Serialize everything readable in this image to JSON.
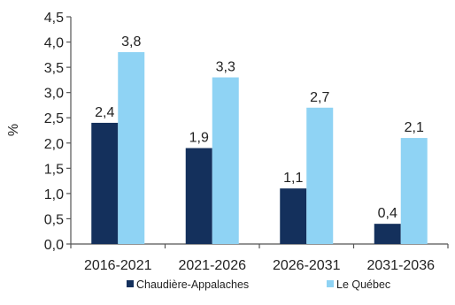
{
  "chart_data": {
    "type": "bar",
    "categories": [
      "2016-2021",
      "2021-2026",
      "2026-2031",
      "2031-2036"
    ],
    "series": [
      {
        "name": "Chaudière-Appalaches",
        "values": [
          2.4,
          1.9,
          1.1,
          0.4
        ],
        "labels": [
          "2,4",
          "1,9",
          "1,1",
          "0,4"
        ],
        "color": "#14305c"
      },
      {
        "name": "Le Québec",
        "values": [
          3.8,
          3.3,
          2.7,
          2.1
        ],
        "labels": [
          "3,8",
          "3,3",
          "2,7",
          "2,1"
        ],
        "color": "#8fd3f4"
      }
    ],
    "ylabel": "%",
    "ylim": [
      0,
      4.5
    ],
    "yticks": [
      "0,0",
      "0,5",
      "1,0",
      "1,5",
      "2,0",
      "2,5",
      "3,0",
      "3,5",
      "4,0",
      "4,5"
    ],
    "grid": false,
    "legend_position": "bottom"
  }
}
